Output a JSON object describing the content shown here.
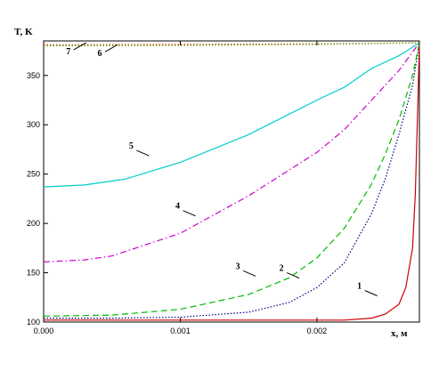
{
  "chart_data": {
    "type": "line",
    "title": "",
    "xlabel": "x, м",
    "ylabel": "T, K",
    "xlim": [
      0,
      0.00275
    ],
    "ylim": [
      100,
      385
    ],
    "grid": false,
    "legend": "none",
    "x_ticks": [
      {
        "value": 0.0,
        "label": "0.000"
      },
      {
        "value": 0.001,
        "label": "0.001"
      },
      {
        "value": 0.002,
        "label": "0.002"
      }
    ],
    "y_ticks": [
      {
        "value": 100,
        "label": "100"
      },
      {
        "value": 150,
        "label": "150"
      },
      {
        "value": 200,
        "label": "200"
      },
      {
        "value": 250,
        "label": "250"
      },
      {
        "value": 300,
        "label": "300"
      },
      {
        "value": 350,
        "label": "350"
      }
    ],
    "series": [
      {
        "name": "1",
        "color": "#cc0000",
        "dash": "solid",
        "label_at": [
          0.00235,
          132
        ],
        "points": [
          [
            0.0,
            102
          ],
          [
            0.0005,
            102
          ],
          [
            0.001,
            102
          ],
          [
            0.0015,
            102
          ],
          [
            0.002,
            102
          ],
          [
            0.0022,
            102
          ],
          [
            0.0024,
            104
          ],
          [
            0.0025,
            108
          ],
          [
            0.0026,
            118
          ],
          [
            0.00265,
            135
          ],
          [
            0.0027,
            175
          ],
          [
            0.00272,
            230
          ],
          [
            0.00274,
            330
          ],
          [
            0.00275,
            383
          ]
        ]
      },
      {
        "name": "2",
        "color": "#000080",
        "dash": "dotted",
        "label_at": [
          0.00178,
          150
        ],
        "points": [
          [
            0.0,
            104
          ],
          [
            0.0005,
            104
          ],
          [
            0.001,
            105
          ],
          [
            0.0015,
            110
          ],
          [
            0.0018,
            120
          ],
          [
            0.002,
            135
          ],
          [
            0.0022,
            160
          ],
          [
            0.0024,
            210
          ],
          [
            0.0025,
            245
          ],
          [
            0.0026,
            290
          ],
          [
            0.0027,
            340
          ],
          [
            0.00275,
            383
          ]
        ]
      },
      {
        "name": "3",
        "color": "#00bb00",
        "dash": "dashed",
        "label_at": [
          0.00146,
          152
        ],
        "points": [
          [
            0.0,
            106
          ],
          [
            0.0005,
            107
          ],
          [
            0.001,
            113
          ],
          [
            0.0015,
            128
          ],
          [
            0.0018,
            145
          ],
          [
            0.002,
            165
          ],
          [
            0.0022,
            195
          ],
          [
            0.0024,
            240
          ],
          [
            0.0025,
            270
          ],
          [
            0.0026,
            305
          ],
          [
            0.0027,
            350
          ],
          [
            0.00275,
            383
          ]
        ]
      },
      {
        "name": "4",
        "color": "#cc00cc",
        "dash": "dashdot",
        "label_at": [
          0.00102,
          213
        ],
        "points": [
          [
            0.0,
            161
          ],
          [
            0.0003,
            163
          ],
          [
            0.0005,
            167
          ],
          [
            0.001,
            190
          ],
          [
            0.0015,
            228
          ],
          [
            0.002,
            272
          ],
          [
            0.0022,
            295
          ],
          [
            0.0024,
            325
          ],
          [
            0.0026,
            355
          ],
          [
            0.00275,
            383
          ]
        ]
      },
      {
        "name": "5",
        "color": "#00cccc",
        "dash": "solid",
        "label_at": [
          0.00068,
          274
        ],
        "points": [
          [
            0.0,
            237
          ],
          [
            0.0003,
            239
          ],
          [
            0.0006,
            245
          ],
          [
            0.001,
            262
          ],
          [
            0.0015,
            290
          ],
          [
            0.002,
            325
          ],
          [
            0.0022,
            338
          ],
          [
            0.0024,
            357
          ],
          [
            0.0026,
            370
          ],
          [
            0.00275,
            383
          ]
        ]
      },
      {
        "name": "6",
        "color": "#cc4400",
        "dash": "dotted",
        "label_at": [
          0.00045,
          374
        ],
        "points": [
          [
            0.0,
            381
          ],
          [
            0.001,
            381.5
          ],
          [
            0.002,
            382
          ],
          [
            0.00275,
            383
          ]
        ]
      },
      {
        "name": "7",
        "color": "#669900",
        "dash": "dotted",
        "label_at": [
          0.00022,
          376
        ],
        "points": [
          [
            0.0,
            380
          ],
          [
            0.001,
            380.5
          ],
          [
            0.002,
            381.5
          ],
          [
            0.00275,
            383
          ]
        ]
      }
    ]
  }
}
